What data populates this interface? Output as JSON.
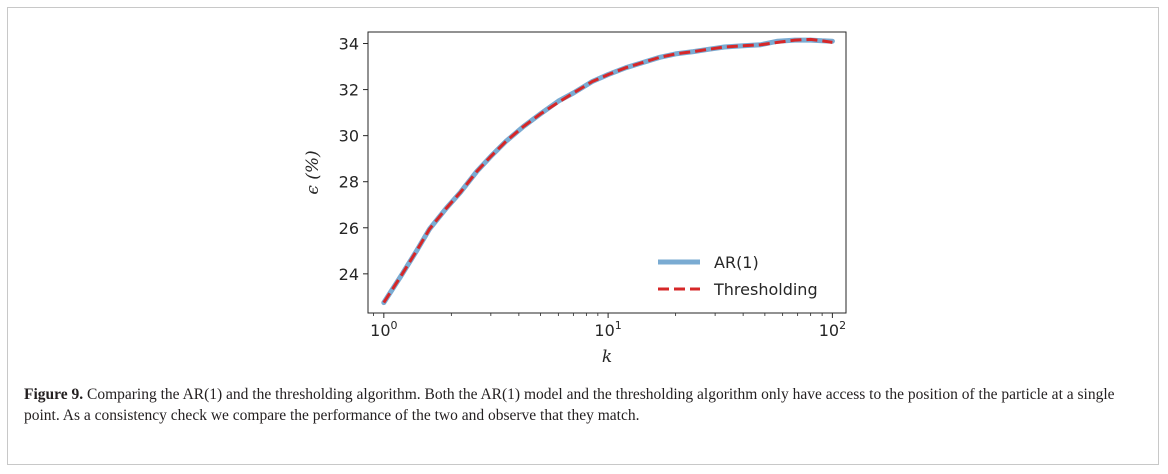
{
  "chart_data": {
    "type": "line",
    "xscale": "log",
    "xlabel": "k",
    "ylabel": "ϵ (%)",
    "xlim": [
      0.85,
      115
    ],
    "ylim": [
      22.3,
      34.5
    ],
    "xticks": [
      {
        "value": 1,
        "base": "10",
        "exp": "0"
      },
      {
        "value": 10,
        "base": "10",
        "exp": "1"
      },
      {
        "value": 100,
        "base": "10",
        "exp": "2"
      }
    ],
    "yticks": [
      24,
      26,
      28,
      30,
      32,
      34
    ],
    "legend_position": "lower-right",
    "grid": false,
    "x": [
      1,
      1.2,
      1.4,
      1.6,
      1.9,
      2.2,
      2.6,
      3,
      3.5,
      4.2,
      5,
      6,
      7,
      8.5,
      10,
      12,
      14,
      17,
      20,
      24,
      28,
      33,
      40,
      48,
      57,
      68,
      80,
      90,
      100
    ],
    "series": [
      {
        "name": "AR(1)",
        "color": "#7aabd2",
        "style": "solid",
        "values": [
          22.75,
          23.95,
          25.0,
          25.95,
          26.85,
          27.55,
          28.45,
          29.1,
          29.75,
          30.4,
          30.95,
          31.5,
          31.85,
          32.35,
          32.65,
          32.95,
          33.15,
          33.4,
          33.55,
          33.65,
          33.75,
          33.85,
          33.9,
          33.95,
          34.1,
          34.15,
          34.15,
          34.12,
          34.1
        ]
      },
      {
        "name": "Thresholding",
        "color": "#d62728",
        "style": "dashed",
        "values": [
          22.75,
          23.95,
          25.0,
          25.95,
          26.85,
          27.55,
          28.45,
          29.1,
          29.75,
          30.4,
          30.95,
          31.45,
          31.85,
          32.35,
          32.65,
          32.95,
          33.15,
          33.4,
          33.55,
          33.65,
          33.75,
          33.85,
          33.9,
          33.95,
          34.05,
          34.15,
          34.18,
          34.12,
          34.05
        ]
      }
    ]
  },
  "caption": {
    "label": "Figure 9.",
    "text": " Comparing the AR(1) and the thresholding algorithm. Both the AR(1) model and the thresholding algorithm only have access to the position of the particle at a single point. As a consistency check we compare the performance of the two and observe that they match."
  }
}
